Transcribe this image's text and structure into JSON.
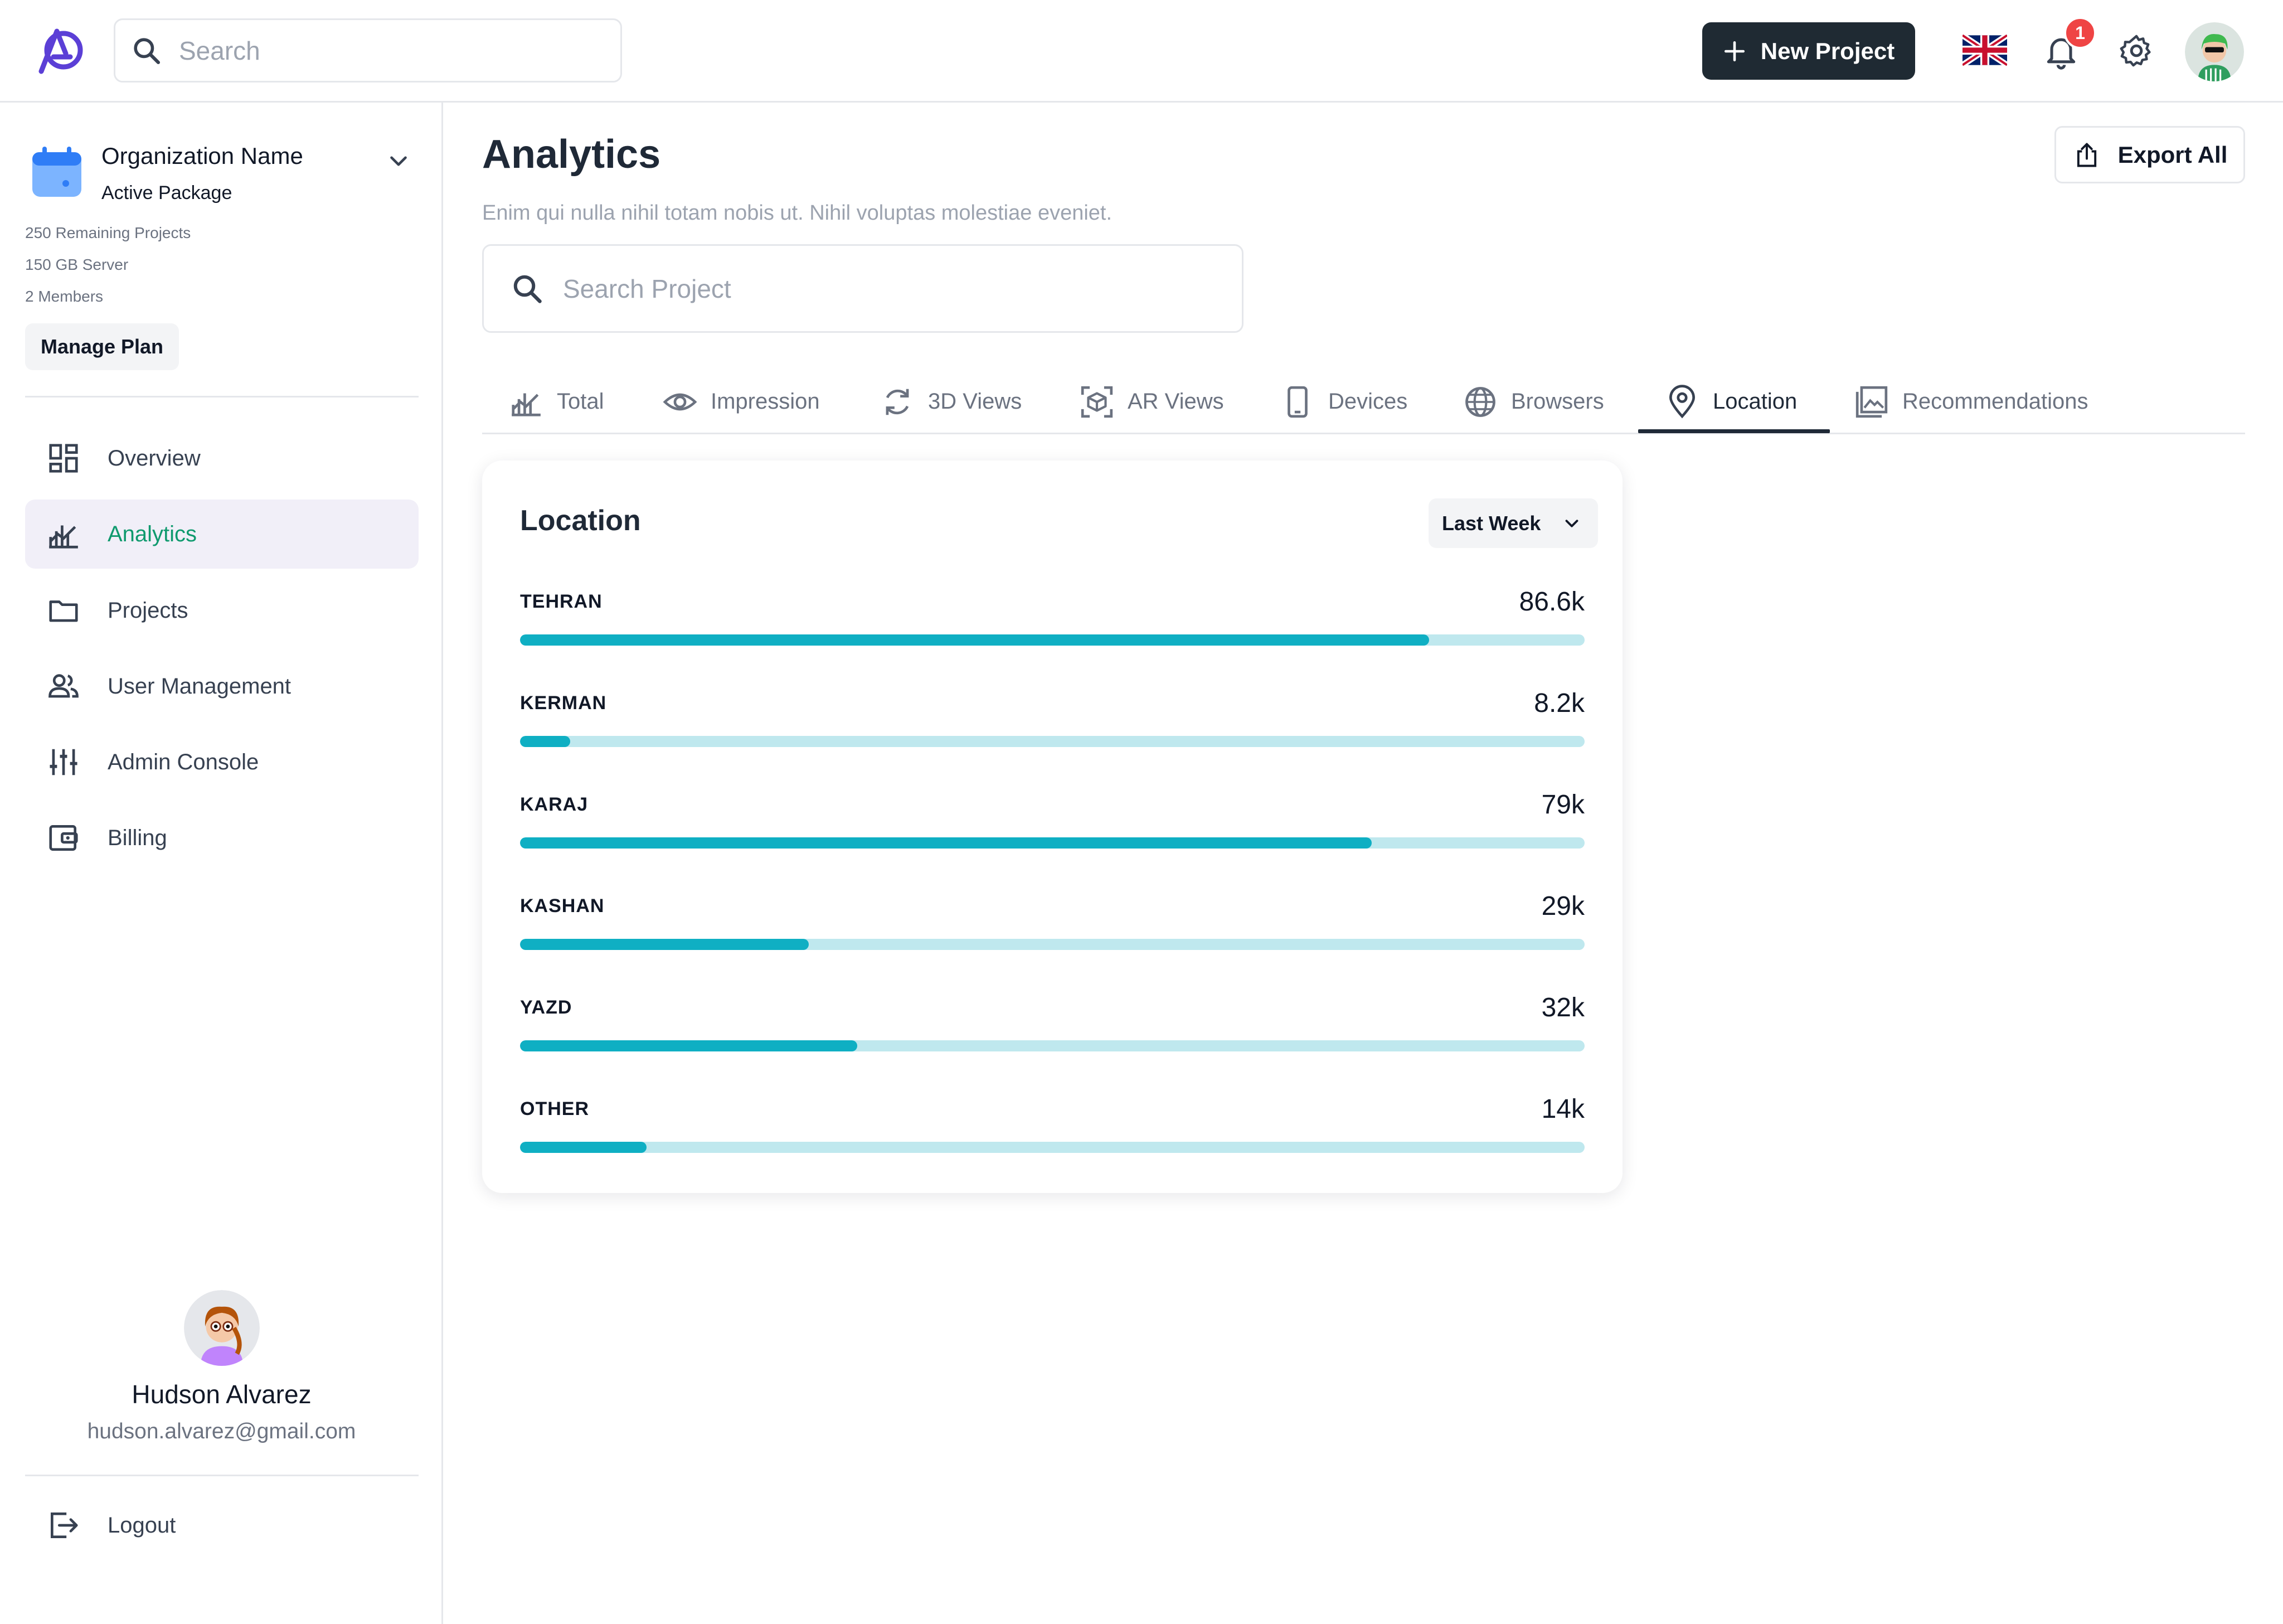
{
  "topbar": {
    "search_placeholder": "Search",
    "new_project_label": "New Project",
    "notifications_count": "1"
  },
  "sidebar": {
    "org_name": "Organization Name",
    "org_package": "Active Package",
    "stats": [
      "250 Remaining Projects",
      "150 GB Server",
      "2 Members"
    ],
    "manage_plan_label": "Manage Plan",
    "items": [
      {
        "label": "Overview",
        "icon": "dashboard-icon"
      },
      {
        "label": "Analytics",
        "icon": "analytics-icon",
        "active": true
      },
      {
        "label": "Projects",
        "icon": "folder-icon"
      },
      {
        "label": "User Management",
        "icon": "users-icon"
      },
      {
        "label": "Admin Console",
        "icon": "sliders-icon"
      },
      {
        "label": "Billing",
        "icon": "wallet-icon"
      }
    ],
    "user": {
      "name": "Hudson Alvarez",
      "email": "hudson.alvarez@gmail.com"
    },
    "logout_label": "Logout"
  },
  "main": {
    "title": "Analytics",
    "subtitle": "Enim qui nulla nihil totam nobis ut. Nihil voluptas molestiae eveniet.",
    "export_label": "Export All",
    "search_placeholder": "Search Project",
    "tabs": [
      {
        "label": "Total",
        "icon": "chart-icon"
      },
      {
        "label": "Impression",
        "icon": "eye-icon"
      },
      {
        "label": "3D Views",
        "icon": "rotate-icon"
      },
      {
        "label": "AR Views",
        "icon": "ar-cube-icon"
      },
      {
        "label": "Devices",
        "icon": "phone-icon"
      },
      {
        "label": "Browsers",
        "icon": "globe-icon"
      },
      {
        "label": "Location",
        "icon": "pin-icon",
        "active": true
      },
      {
        "label": "Recommendations",
        "icon": "image-icon"
      }
    ],
    "card": {
      "title": "Location",
      "period_label": "Last Week",
      "locations": [
        {
          "name": "TEHRAN",
          "value": "86.6k",
          "fill": 0.854
        },
        {
          "name": "KERMAN",
          "value": "8.2k",
          "fill": 0.047
        },
        {
          "name": "KARAJ",
          "value": "79k",
          "fill": 0.8
        },
        {
          "name": "KASHAN",
          "value": "29k",
          "fill": 0.271
        },
        {
          "name": "YAZD",
          "value": "32k",
          "fill": 0.317
        },
        {
          "name": "OTHER",
          "value": "14k",
          "fill": 0.119
        }
      ]
    }
  },
  "colors": {
    "accent_green": "#0f9a6e",
    "bar_fill": "#0fafc3",
    "bar_track": "#bfe8ee",
    "dark_button": "#1f2a33",
    "badge_red": "#ef4444"
  }
}
